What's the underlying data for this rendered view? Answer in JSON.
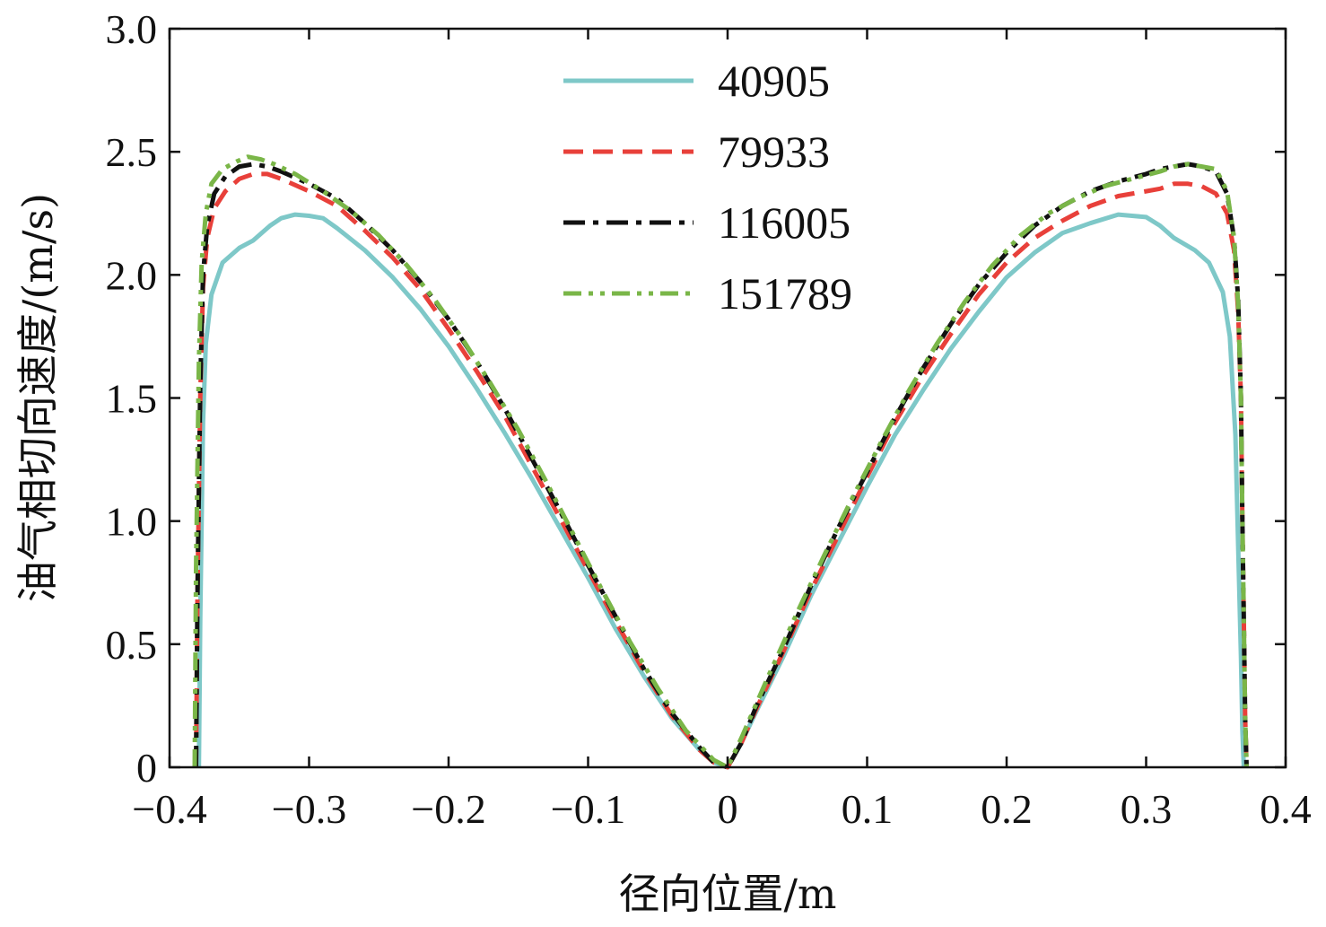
{
  "chart_data": {
    "type": "line",
    "title": "",
    "xlabel": "径向位置/m",
    "ylabel": "油气相切向速度/(m/s)",
    "xlim": [
      -0.4,
      0.4
    ],
    "ylim": [
      0,
      3.0
    ],
    "xticks": [
      -0.4,
      -0.3,
      -0.2,
      -0.1,
      0,
      0.1,
      0.2,
      0.3,
      0.4
    ],
    "xtick_labels": [
      "−0.4",
      "−0.3",
      "−0.2",
      "−0.1",
      "0",
      "0.1",
      "0.2",
      "0.3",
      "0.4"
    ],
    "yticks": [
      0,
      0.5,
      1.0,
      1.5,
      2.0,
      2.5,
      3.0
    ],
    "ytick_labels": [
      "0",
      "0.5",
      "1.0",
      "1.5",
      "2.0",
      "2.5",
      "3.0"
    ],
    "grid": false,
    "legend_position": "top-center",
    "series": [
      {
        "name": "40905",
        "color": "#7ec8c8",
        "dash": "solid",
        "x": [
          -0.379,
          -0.378,
          -0.376,
          -0.374,
          -0.37,
          -0.362,
          -0.35,
          -0.34,
          -0.328,
          -0.32,
          -0.31,
          -0.3,
          -0.29,
          -0.28,
          -0.26,
          -0.24,
          -0.22,
          -0.2,
          -0.18,
          -0.16,
          -0.14,
          -0.12,
          -0.1,
          -0.08,
          -0.06,
          -0.04,
          -0.02,
          -0.01,
          0,
          0.01,
          0.02,
          0.04,
          0.06,
          0.08,
          0.1,
          0.12,
          0.14,
          0.16,
          0.18,
          0.2,
          0.22,
          0.24,
          0.26,
          0.28,
          0.29,
          0.3,
          0.31,
          0.32,
          0.335,
          0.345,
          0.355,
          0.36,
          0.364,
          0.366,
          0.368,
          0.369,
          0.37
        ],
        "y": [
          0,
          0.6,
          1.4,
          1.72,
          1.92,
          2.05,
          2.11,
          2.14,
          2.2,
          2.23,
          2.245,
          2.24,
          2.23,
          2.19,
          2.1,
          1.99,
          1.86,
          1.71,
          1.54,
          1.36,
          1.17,
          0.97,
          0.77,
          0.56,
          0.37,
          0.2,
          0.07,
          0.02,
          0.0,
          0.1,
          0.22,
          0.45,
          0.7,
          0.92,
          1.14,
          1.35,
          1.53,
          1.7,
          1.85,
          1.99,
          2.09,
          2.17,
          2.21,
          2.245,
          2.24,
          2.235,
          2.2,
          2.15,
          2.1,
          2.05,
          1.93,
          1.75,
          1.35,
          0.9,
          0.45,
          0.15,
          0
        ]
      },
      {
        "name": "79933",
        "color": "#e8403a",
        "dash": "dashed",
        "x": [
          -0.381,
          -0.38,
          -0.378,
          -0.376,
          -0.373,
          -0.368,
          -0.36,
          -0.35,
          -0.34,
          -0.33,
          -0.32,
          -0.3,
          -0.28,
          -0.26,
          -0.24,
          -0.22,
          -0.2,
          -0.18,
          -0.16,
          -0.14,
          -0.12,
          -0.1,
          -0.08,
          -0.06,
          -0.04,
          -0.02,
          -0.01,
          0,
          0.01,
          0.02,
          0.04,
          0.06,
          0.08,
          0.1,
          0.12,
          0.14,
          0.16,
          0.18,
          0.2,
          0.22,
          0.24,
          0.26,
          0.28,
          0.3,
          0.31,
          0.32,
          0.33,
          0.34,
          0.35,
          0.358,
          0.363,
          0.366,
          0.368,
          0.369,
          0.37,
          0.371,
          0.372
        ],
        "y": [
          0,
          0.7,
          1.5,
          1.95,
          2.15,
          2.27,
          2.34,
          2.39,
          2.41,
          2.41,
          2.39,
          2.34,
          2.28,
          2.18,
          2.07,
          1.94,
          1.78,
          1.61,
          1.43,
          1.22,
          1.01,
          0.8,
          0.59,
          0.39,
          0.21,
          0.07,
          0.02,
          0.0,
          0.1,
          0.23,
          0.47,
          0.72,
          0.95,
          1.18,
          1.4,
          1.59,
          1.76,
          1.92,
          2.05,
          2.15,
          2.22,
          2.28,
          2.32,
          2.34,
          2.35,
          2.37,
          2.37,
          2.36,
          2.33,
          2.25,
          2.1,
          1.85,
          1.5,
          1.0,
          0.6,
          0.2,
          0
        ]
      },
      {
        "name": "116005",
        "color": "#111111",
        "dash": "dashdot",
        "x": [
          -0.381,
          -0.38,
          -0.378,
          -0.376,
          -0.373,
          -0.368,
          -0.36,
          -0.35,
          -0.34,
          -0.33,
          -0.32,
          -0.3,
          -0.28,
          -0.26,
          -0.24,
          -0.22,
          -0.2,
          -0.18,
          -0.16,
          -0.14,
          -0.12,
          -0.1,
          -0.08,
          -0.06,
          -0.04,
          -0.02,
          -0.01,
          0,
          0.01,
          0.02,
          0.04,
          0.06,
          0.08,
          0.1,
          0.12,
          0.14,
          0.16,
          0.18,
          0.2,
          0.22,
          0.24,
          0.26,
          0.28,
          0.3,
          0.31,
          0.32,
          0.33,
          0.34,
          0.35,
          0.358,
          0.363,
          0.366,
          0.368,
          0.369,
          0.37,
          0.371,
          0.372
        ],
        "y": [
          0,
          0.7,
          1.55,
          2.0,
          2.2,
          2.33,
          2.4,
          2.44,
          2.45,
          2.44,
          2.42,
          2.37,
          2.31,
          2.21,
          2.1,
          1.97,
          1.82,
          1.65,
          1.46,
          1.25,
          1.04,
          0.82,
          0.61,
          0.4,
          0.22,
          0.08,
          0.02,
          0.0,
          0.1,
          0.24,
          0.48,
          0.74,
          0.98,
          1.2,
          1.42,
          1.62,
          1.8,
          1.96,
          2.09,
          2.2,
          2.28,
          2.34,
          2.38,
          2.41,
          2.43,
          2.44,
          2.45,
          2.44,
          2.42,
          2.33,
          2.15,
          1.9,
          1.5,
          1.0,
          0.6,
          0.2,
          0
        ]
      },
      {
        "name": "151789",
        "color": "#7ab648",
        "dash": "dashdotdot",
        "x": [
          -0.382,
          -0.381,
          -0.379,
          -0.377,
          -0.374,
          -0.37,
          -0.362,
          -0.352,
          -0.344,
          -0.335,
          -0.325,
          -0.31,
          -0.29,
          -0.27,
          -0.25,
          -0.23,
          -0.21,
          -0.19,
          -0.17,
          -0.15,
          -0.13,
          -0.11,
          -0.09,
          -0.07,
          -0.05,
          -0.03,
          -0.01,
          0,
          0.01,
          0.03,
          0.05,
          0.07,
          0.09,
          0.11,
          0.13,
          0.15,
          0.17,
          0.19,
          0.21,
          0.23,
          0.25,
          0.27,
          0.29,
          0.31,
          0.32,
          0.33,
          0.34,
          0.35,
          0.358,
          0.363,
          0.366,
          0.368,
          0.369,
          0.37,
          0.371,
          0.372
        ],
        "y": [
          0,
          0.8,
          1.65,
          2.05,
          2.25,
          2.37,
          2.43,
          2.46,
          2.48,
          2.47,
          2.45,
          2.41,
          2.34,
          2.26,
          2.16,
          2.04,
          1.9,
          1.74,
          1.56,
          1.37,
          1.16,
          0.94,
          0.72,
          0.51,
          0.32,
          0.15,
          0.03,
          0.0,
          0.12,
          0.38,
          0.63,
          0.87,
          1.1,
          1.32,
          1.53,
          1.72,
          1.89,
          2.04,
          2.16,
          2.25,
          2.31,
          2.36,
          2.39,
          2.42,
          2.44,
          2.45,
          2.44,
          2.43,
          2.34,
          2.15,
          1.88,
          1.5,
          1.0,
          0.6,
          0.2,
          0
        ]
      }
    ]
  }
}
